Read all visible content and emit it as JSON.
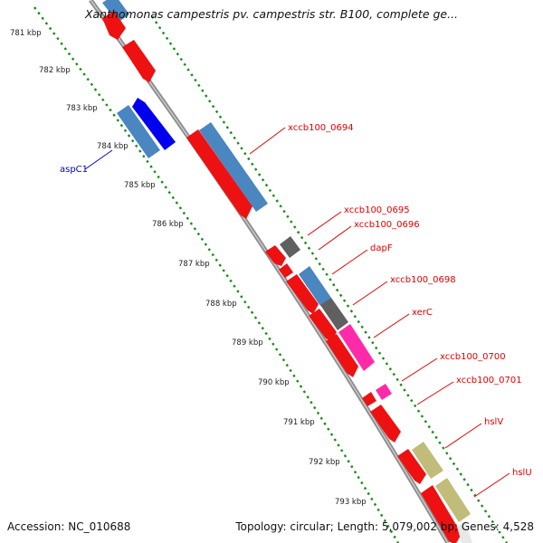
{
  "header": {
    "title": "Xanthomonas campestris pv. campestris str. B100, complete ge..."
  },
  "footer": {
    "accession": "Accession: NC_010688",
    "summary": "Topology: circular; Length: 5,079,002 bp; Genes: 4,528"
  },
  "colors": {
    "backbone": "#8a8a8a",
    "ticks": "#1a8a1a",
    "red": "#ee1111",
    "steelblue": "#4a86c0",
    "blue": "#0000ee",
    "gray": "#606060",
    "magenta": "#ff2aa8",
    "khaki": "#c2bc7a",
    "label_red": "#dd0000",
    "label_blue": "#0000cc"
  },
  "ticks": [
    {
      "label": "781 kbp"
    },
    {
      "label": "782 kbp"
    },
    {
      "label": "783 kbp"
    },
    {
      "label": "784 kbp"
    },
    {
      "label": "785 kbp"
    },
    {
      "label": "786 kbp"
    },
    {
      "label": "787 kbp"
    },
    {
      "label": "788 kbp"
    },
    {
      "label": "789 kbp"
    },
    {
      "label": "790 kbp"
    },
    {
      "label": "791 kbp"
    },
    {
      "label": "792 kbp"
    },
    {
      "label": "793 kbp"
    }
  ],
  "genes": [
    {
      "name": "xccb100_0694",
      "color": "red"
    },
    {
      "name": "aspC1",
      "color": "blue"
    },
    {
      "name": "xccb100_0695",
      "color": "gray"
    },
    {
      "name": "xccb100_0696",
      "color": "red"
    },
    {
      "name": "dapF",
      "color": "red"
    },
    {
      "name": "xccb100_0698",
      "color": "steelblue"
    },
    {
      "name": "xerC",
      "color": "magenta"
    },
    {
      "name": "xccb100_0700",
      "color": "magenta"
    },
    {
      "name": "xccb100_0701",
      "color": "red"
    },
    {
      "name": "hslV",
      "color": "khaki"
    },
    {
      "name": "hslU",
      "color": "khaki"
    }
  ]
}
